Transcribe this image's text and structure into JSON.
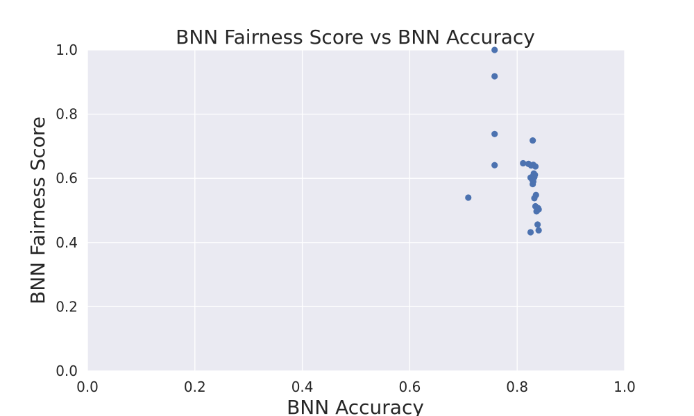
{
  "chart_data": {
    "type": "scatter",
    "title": "BNN Fairness Score vs BNN Accuracy",
    "xlabel": "BNN Accuracy",
    "ylabel": "BNN Fairness Score",
    "xlim": [
      0.0,
      1.0
    ],
    "ylim": [
      0.0,
      1.0
    ],
    "xticks": [
      "0.0",
      "0.2",
      "0.4",
      "0.6",
      "0.8",
      "1.0"
    ],
    "yticks": [
      "0.0",
      "0.2",
      "0.4",
      "0.6",
      "0.8",
      "1.0"
    ],
    "grid": true,
    "point_color": "#4c72b0",
    "background_color": "#eaeaf2",
    "points": [
      {
        "x": 0.758,
        "y": 1.0
      },
      {
        "x": 0.758,
        "y": 0.918
      },
      {
        "x": 0.758,
        "y": 0.738
      },
      {
        "x": 0.758,
        "y": 0.641
      },
      {
        "x": 0.709,
        "y": 0.54
      },
      {
        "x": 0.829,
        "y": 0.718
      },
      {
        "x": 0.811,
        "y": 0.647
      },
      {
        "x": 0.821,
        "y": 0.645
      },
      {
        "x": 0.826,
        "y": 0.64
      },
      {
        "x": 0.83,
        "y": 0.642
      },
      {
        "x": 0.834,
        "y": 0.637
      },
      {
        "x": 0.831,
        "y": 0.615
      },
      {
        "x": 0.833,
        "y": 0.611
      },
      {
        "x": 0.829,
        "y": 0.606
      },
      {
        "x": 0.825,
        "y": 0.602
      },
      {
        "x": 0.832,
        "y": 0.604
      },
      {
        "x": 0.828,
        "y": 0.596
      },
      {
        "x": 0.83,
        "y": 0.59
      },
      {
        "x": 0.829,
        "y": 0.582
      },
      {
        "x": 0.835,
        "y": 0.548
      },
      {
        "x": 0.832,
        "y": 0.538
      },
      {
        "x": 0.834,
        "y": 0.513
      },
      {
        "x": 0.839,
        "y": 0.507
      },
      {
        "x": 0.84,
        "y": 0.503
      },
      {
        "x": 0.836,
        "y": 0.497
      },
      {
        "x": 0.838,
        "y": 0.456
      },
      {
        "x": 0.84,
        "y": 0.438
      },
      {
        "x": 0.825,
        "y": 0.432
      }
    ]
  }
}
